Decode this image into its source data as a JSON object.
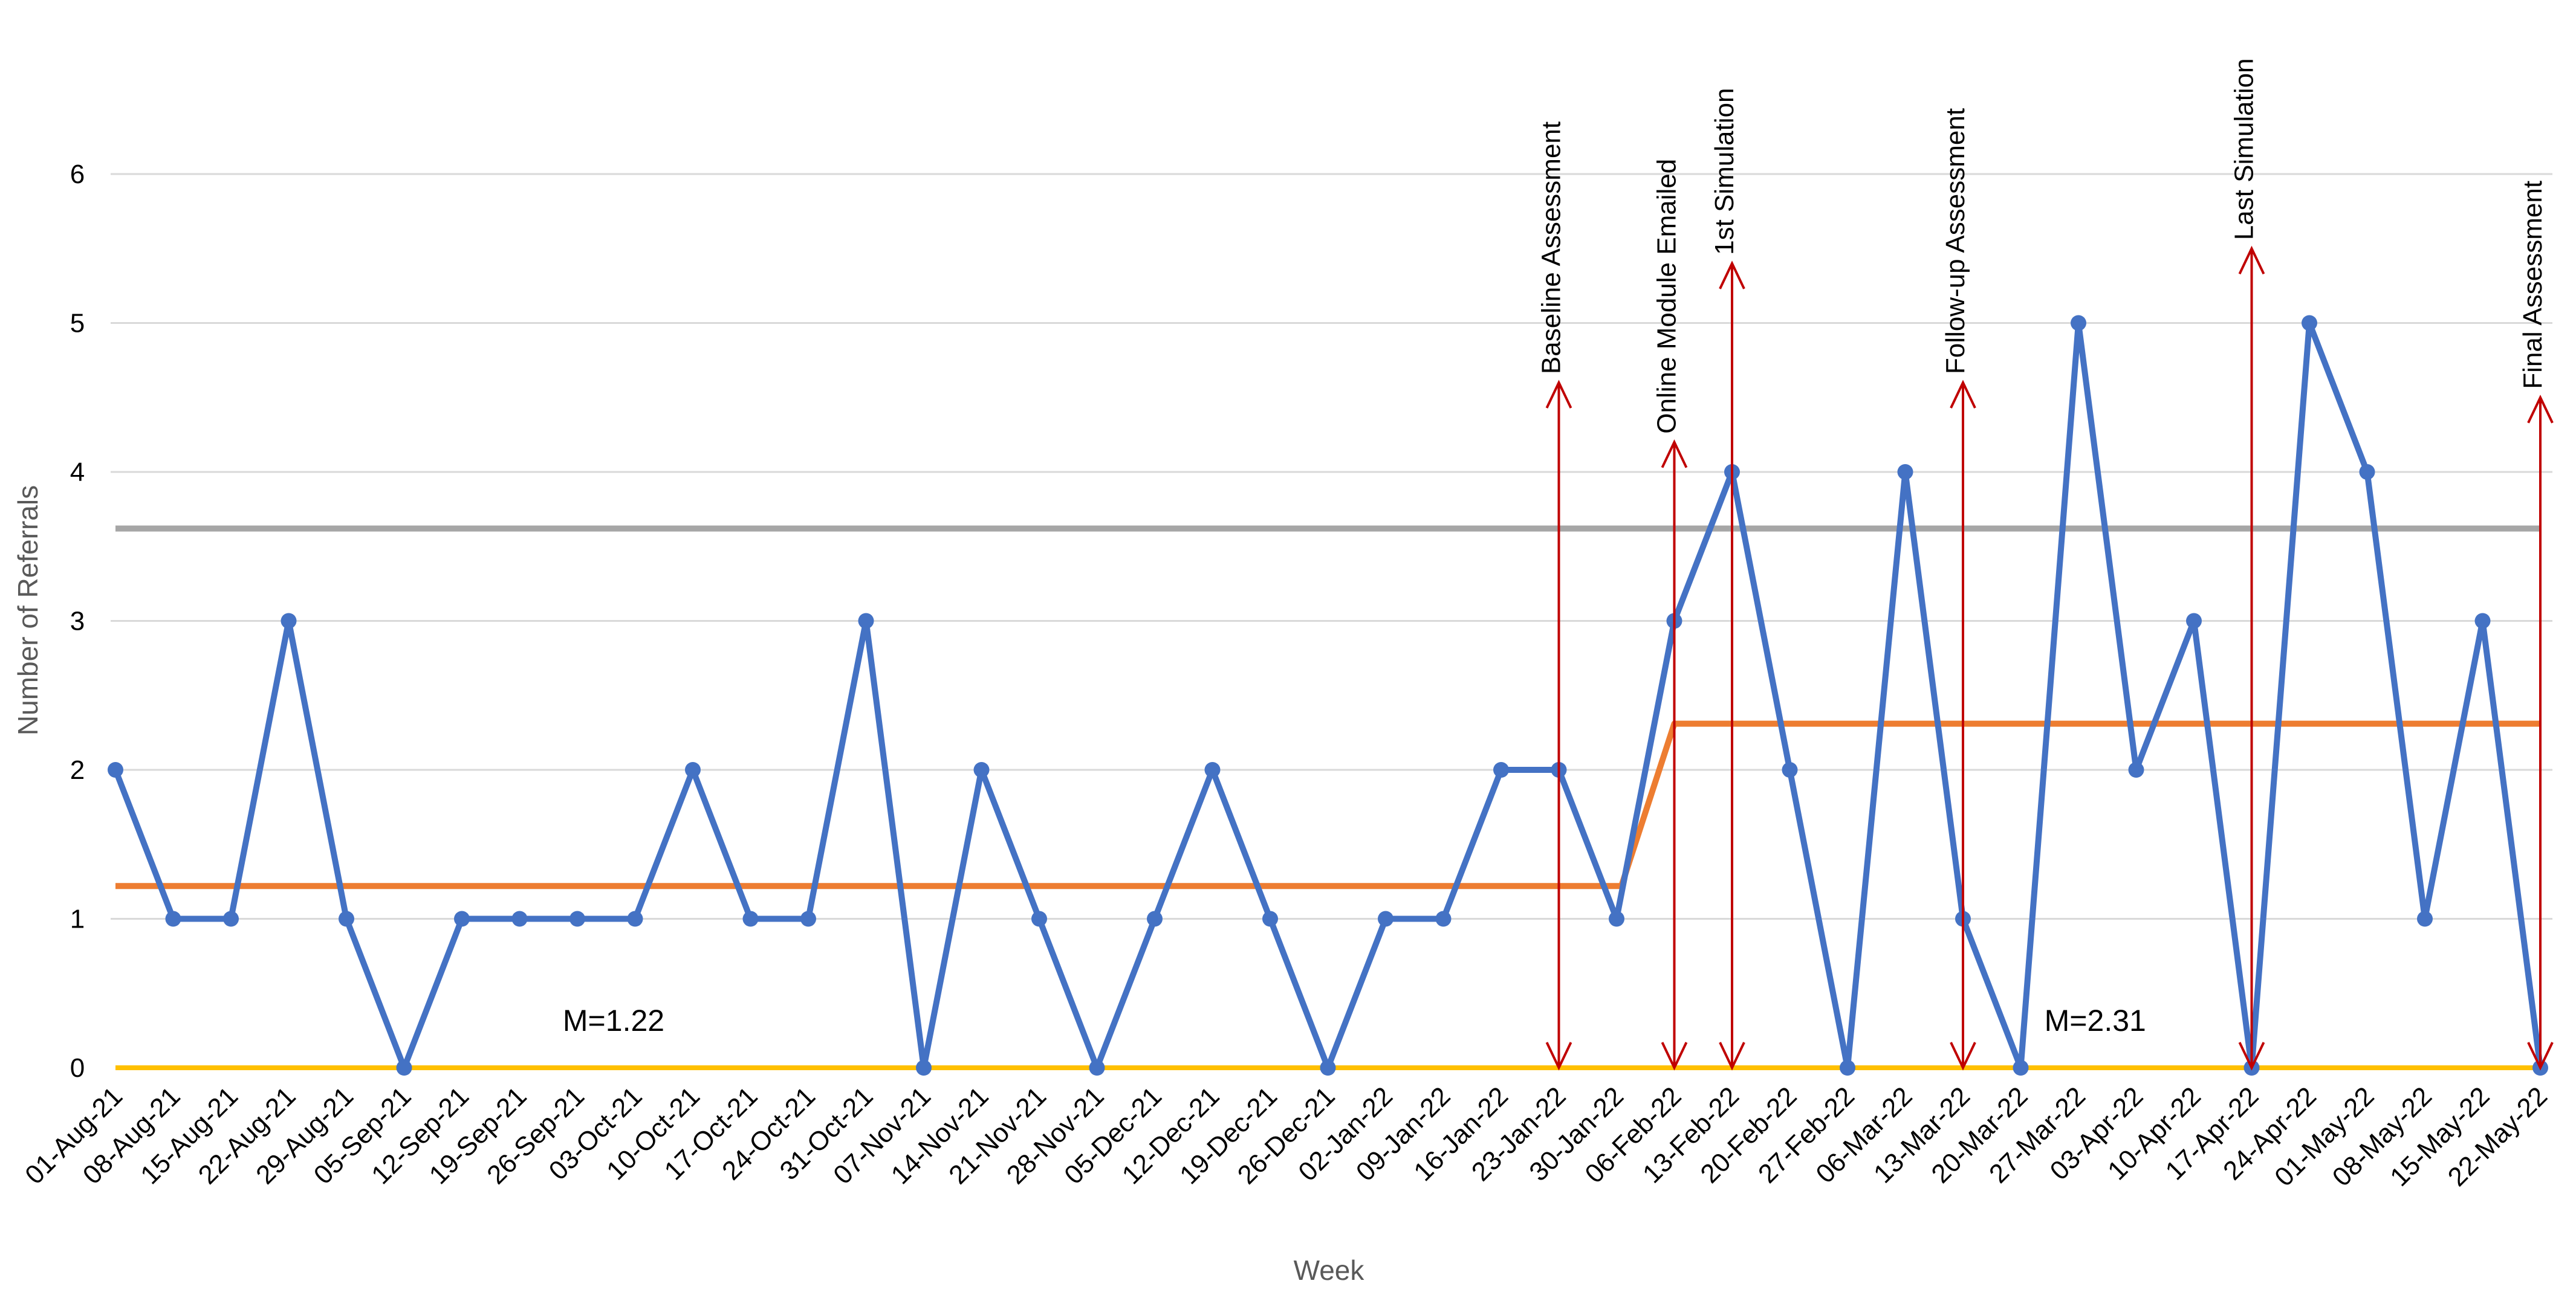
{
  "chart_data": {
    "type": "line",
    "xlabel": "Week",
    "ylabel": "Number of Referrals",
    "ylim": [
      0,
      6
    ],
    "yticks": [
      "0",
      "1",
      "2",
      "3",
      "4",
      "5",
      "6"
    ],
    "grid": true,
    "categories": [
      "01-Aug-21",
      "08-Aug-21",
      "15-Aug-21",
      "22-Aug-21",
      "29-Aug-21",
      "05-Sep-21",
      "12-Sep-21",
      "19-Sep-21",
      "26-Sep-21",
      "03-Oct-21",
      "10-Oct-21",
      "17-Oct-21",
      "24-Oct-21",
      "31-Oct-21",
      "07-Nov-21",
      "14-Nov-21",
      "21-Nov-21",
      "28-Nov-21",
      "05-Dec-21",
      "12-Dec-21",
      "19-Dec-21",
      "26-Dec-21",
      "02-Jan-22",
      "09-Jan-22",
      "16-Jan-22",
      "23-Jan-22",
      "30-Jan-22",
      "06-Feb-22",
      "13-Feb-22",
      "20-Feb-22",
      "27-Feb-22",
      "06-Mar-22",
      "13-Mar-22",
      "20-Mar-22",
      "27-Mar-22",
      "03-Apr-22",
      "10-Apr-22",
      "17-Apr-22",
      "24-Apr-22",
      "01-May-22",
      "08-May-22",
      "15-May-22",
      "22-May-22"
    ],
    "series": [
      {
        "values": [
          2,
          1,
          1,
          3,
          1,
          0,
          1,
          1,
          1,
          1,
          2,
          1,
          1,
          3,
          0,
          2,
          1,
          0,
          1,
          2,
          1,
          0,
          1,
          1,
          2,
          2,
          1,
          3,
          4,
          2,
          0,
          4,
          1,
          0,
          5,
          2,
          3,
          0,
          5,
          4,
          1,
          3,
          0
        ],
        "color": "#4472C4",
        "markers": "circle"
      }
    ],
    "mean_line": {
      "color": "#ED7D31",
      "segments": [
        {
          "from": "01-Aug-21",
          "to": "30-Jan-22",
          "value": 1.22
        },
        {
          "from": "06-Feb-22",
          "to": "22-May-22",
          "value": 2.31
        }
      ]
    },
    "upper_limit_line": {
      "value": 3.62,
      "color": "#A6A6A6"
    },
    "lower_limit_line": {
      "value": 0,
      "color": "#FFC000"
    },
    "mean_labels": [
      {
        "text": "M=1.22",
        "near": "19-Sep-21 to 03-Oct-21",
        "y": 0.32
      },
      {
        "text": "M=2.31",
        "near": "27-Mar-22 to 03-Apr-22",
        "y": 0.32
      }
    ],
    "annotations": [
      {
        "text": "Baseline Assessment",
        "at": "23-Jan-22",
        "top_value": 4.6
      },
      {
        "text": "Online Module Emailed",
        "at": "06-Feb-22",
        "top_value": 4.2
      },
      {
        "text": "1st Simulation",
        "at": "13-Feb-22",
        "top_value": 5.4
      },
      {
        "text": "Follow-up  Assessment",
        "at": "13-Mar-22",
        "top_value": 4.6
      },
      {
        "text": "Last Simulation",
        "at": "17-Apr-22",
        "top_value": 5.5
      },
      {
        "text": "Final Assessment",
        "at": "22-May-22",
        "top_value": 4.5
      }
    ],
    "annotation_color": "#C00000"
  }
}
